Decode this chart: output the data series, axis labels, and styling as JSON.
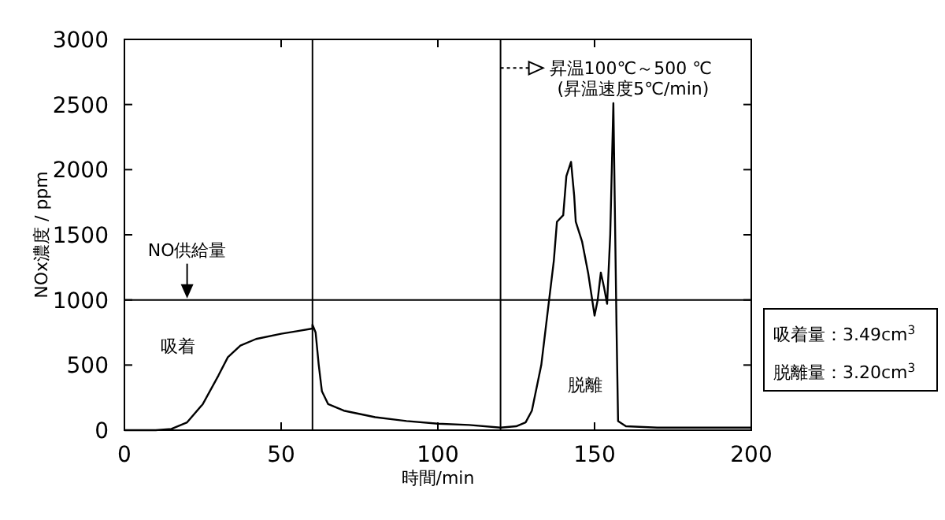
{
  "chart_data": {
    "type": "line",
    "xlabel": "時間/min",
    "ylabel": "NOx濃度 / ppm",
    "xlim": [
      0,
      200
    ],
    "ylim": [
      0,
      3000
    ],
    "xticks": [
      0,
      50,
      100,
      150,
      200
    ],
    "yticks": [
      0,
      500,
      1000,
      1500,
      2000,
      2500,
      3000
    ],
    "series": [
      {
        "color": "#000000",
        "x": [
          0,
          10,
          15,
          20,
          25,
          30,
          33,
          37,
          42,
          50,
          55,
          60,
          60,
          61,
          62,
          63,
          65,
          70,
          80,
          90,
          100,
          110,
          120,
          125,
          128,
          130,
          133,
          135,
          137,
          138,
          140,
          141,
          142.5,
          143.5,
          144,
          146,
          148,
          150,
          151,
          152,
          153,
          154,
          155,
          156,
          157,
          157.5,
          160,
          170,
          180,
          200
        ],
        "values": [
          0,
          0,
          10,
          60,
          200,
          420,
          560,
          650,
          700,
          740,
          760,
          780,
          810,
          750,
          500,
          300,
          200,
          150,
          100,
          70,
          50,
          40,
          20,
          30,
          60,
          150,
          500,
          900,
          1300,
          1600,
          1650,
          1950,
          2060,
          1800,
          1600,
          1450,
          1200,
          880,
          1000,
          1210,
          1100,
          970,
          1500,
          2510,
          800,
          70,
          30,
          20,
          20,
          20
        ]
      }
    ],
    "ref_lines": [
      {
        "axis": "y",
        "value": 1000,
        "label": "NO供給量"
      },
      {
        "axis": "x",
        "value": 60
      },
      {
        "axis": "x",
        "value": 120
      }
    ],
    "annotations": [
      "吸着",
      "脱離",
      {
        "text": "昇温100℃～500 ℃",
        "x": 120,
        "y": 2780
      },
      "(昇温速度5℃/min)",
      "吸着量：3.49cm$^{3}$",
      "脱離量：3.20cm$^{3}$"
    ],
    "grid": false
  }
}
